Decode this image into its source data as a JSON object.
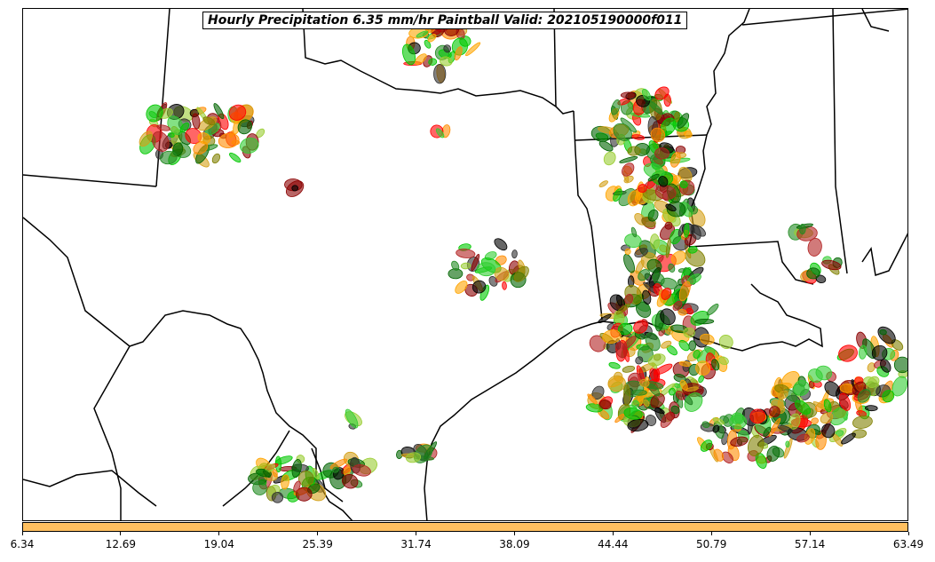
{
  "title": "Hourly Precipitation 6.35 mm/hr Paintball Valid: 202105190000f011",
  "colorbar": {
    "color": "#ffc060",
    "ticks": [
      "6.34",
      "12.69",
      "19.04",
      "25.39",
      "31.74",
      "38.09",
      "44.44",
      "50.79",
      "57.14",
      "63.49"
    ]
  },
  "member_colors": [
    "#8b0000",
    "#b22222",
    "#ff0000",
    "#ff8c00",
    "#ffa500",
    "#d4a017",
    "#808000",
    "#9acd32",
    "#00c800",
    "#32cd32",
    "#006400",
    "#228b22",
    "#2f2f2f",
    "#000000"
  ]
}
